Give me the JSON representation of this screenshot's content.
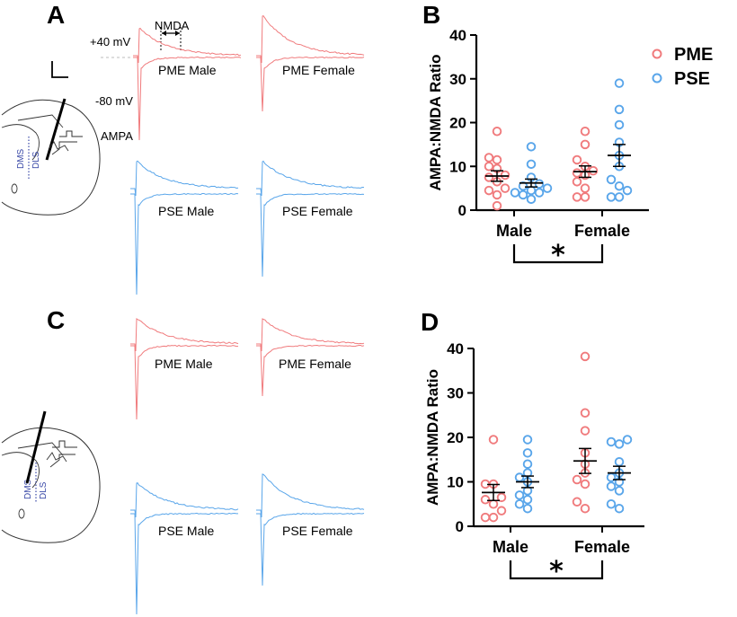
{
  "panels": {
    "a": {
      "letter": "A",
      "voltage_pos": "+40 mV",
      "voltage_neg": "-80 mV",
      "nmda_label": "NMDA",
      "ampa_label": "AMPA",
      "traces": [
        "PME Male",
        "PME Female",
        "PSE Male",
        "PSE Female"
      ],
      "slice_regions": [
        "DMS",
        "DLS"
      ]
    },
    "c": {
      "letter": "C",
      "traces": [
        "PME Male",
        "PME Female",
        "PSE Male",
        "PSE Female"
      ],
      "slice_regions": [
        "DMS",
        "DLS"
      ]
    }
  },
  "colors": {
    "pme": "#f07b7d",
    "pse": "#5aa6ea"
  },
  "chart_data": [
    {
      "type": "scatter",
      "panel": "B",
      "ylabel": "AMPA:NMDA Ratio",
      "ylim": [
        0,
        40
      ],
      "yticks": [
        "0",
        "10",
        "20",
        "30",
        "40"
      ],
      "categories": [
        "Male",
        "Female"
      ],
      "legend": [
        "PME",
        "PSE"
      ],
      "significance": "*",
      "series": [
        {
          "name": "PME",
          "group": "Male",
          "values": [
            18,
            12,
            11.5,
            10,
            9.5,
            8,
            7.5,
            6.5,
            5,
            4.5,
            3.5,
            1
          ],
          "mean": 7.8,
          "sem": 1.2
        },
        {
          "name": "PSE",
          "group": "Male",
          "values": [
            14.5,
            10.5,
            7.5,
            6,
            5.5,
            5,
            4.5,
            4,
            4,
            3.5,
            2.5
          ],
          "mean": 6.2,
          "sem": 0.9
        },
        {
          "name": "PME",
          "group": "Female",
          "values": [
            18,
            15,
            11.5,
            10,
            9,
            8.5,
            8,
            6.5,
            5,
            3,
            3
          ],
          "mean": 8.8,
          "sem": 1.3
        },
        {
          "name": "PSE",
          "group": "Female",
          "values": [
            29,
            23,
            19.5,
            15.5,
            12.5,
            10,
            7,
            5.5,
            4.5,
            3,
            3
          ],
          "mean": 12.5,
          "sem": 2.5
        }
      ]
    },
    {
      "type": "scatter",
      "panel": "D",
      "ylabel": "AMPA:NMDA Ratio",
      "ylim": [
        0,
        40
      ],
      "yticks": [
        "0",
        "10",
        "20",
        "30",
        "40"
      ],
      "categories": [
        "Male",
        "Female"
      ],
      "significance": "*",
      "series": [
        {
          "name": "PME",
          "group": "Male",
          "values": [
            19.5,
            9.5,
            9.5,
            6.5,
            6,
            5,
            3.5,
            2,
            2
          ],
          "mean": 7.6,
          "sem": 1.8
        },
        {
          "name": "PSE",
          "group": "Male",
          "values": [
            19.5,
            16.5,
            14,
            12,
            11,
            10,
            8,
            7,
            6,
            5,
            4
          ],
          "mean": 10.0,
          "sem": 1.3
        },
        {
          "name": "PME",
          "group": "Female",
          "values": [
            38.2,
            25.5,
            21.5,
            16.5,
            14,
            12,
            10.5,
            9.5,
            5.5,
            4
          ],
          "mean": 14.7,
          "sem": 2.8
        },
        {
          "name": "PSE",
          "group": "Female",
          "values": [
            19.5,
            19,
            18.5,
            14.5,
            12,
            11,
            10,
            9,
            8,
            5,
            4
          ],
          "mean": 12.0,
          "sem": 1.5
        }
      ]
    }
  ]
}
